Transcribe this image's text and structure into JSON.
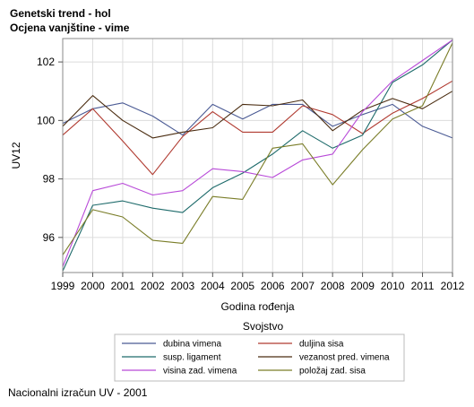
{
  "title_line1": "Genetski trend - hol",
  "title_line2": "Ocjena vanjštine - vime",
  "footer": "Nacionalni izračun UV - 2001",
  "chart_data": {
    "type": "line",
    "xlabel": "Godina rođenja",
    "ylabel": "UV12",
    "x": [
      1999,
      2000,
      2001,
      2002,
      2003,
      2004,
      2005,
      2006,
      2007,
      2008,
      2009,
      2010,
      2011,
      2012
    ],
    "xlim": [
      1999,
      2012
    ],
    "ylim": [
      94.8,
      102.8
    ],
    "yticks": [
      96,
      98,
      100,
      102
    ],
    "grid": true,
    "legend_title": "Svojstvo",
    "legend_position": "bottom",
    "series": [
      {
        "name": "dubina vimena",
        "color": "#4a5a94",
        "values": [
          99.9,
          100.4,
          100.6,
          100.15,
          99.5,
          100.55,
          100.05,
          100.55,
          100.55,
          99.8,
          100.2,
          100.55,
          99.8,
          99.4
        ]
      },
      {
        "name": "duljina sisa",
        "color": "#b03a30",
        "values": [
          99.5,
          100.4,
          99.3,
          98.15,
          99.45,
          100.3,
          99.6,
          99.6,
          100.5,
          100.2,
          99.55,
          100.25,
          100.75,
          101.35
        ]
      },
      {
        "name": "susp. ligament",
        "color": "#1e6b6b",
        "values": [
          94.85,
          97.1,
          97.25,
          97.0,
          96.85,
          97.7,
          98.2,
          98.85,
          99.65,
          99.05,
          99.5,
          101.3,
          101.9,
          102.75
        ]
      },
      {
        "name": "vezanost pred. vimena",
        "color": "#4a2c10",
        "values": [
          99.8,
          100.85,
          100.0,
          99.4,
          99.6,
          99.75,
          100.55,
          100.5,
          100.7,
          99.65,
          100.35,
          100.75,
          100.4,
          101.0
        ]
      },
      {
        "name": "visina zad. vimena",
        "color": "#b84ad8",
        "values": [
          95.0,
          97.6,
          97.85,
          97.45,
          97.6,
          98.35,
          98.25,
          98.05,
          98.65,
          98.85,
          100.3,
          101.35,
          102.05,
          102.75
        ]
      },
      {
        "name": "položaj zad. sisa",
        "color": "#7a7d28",
        "values": [
          95.4,
          96.95,
          96.7,
          95.9,
          95.8,
          97.4,
          97.3,
          99.05,
          99.2,
          97.8,
          99.0,
          100.05,
          100.5,
          102.65
        ]
      }
    ]
  }
}
